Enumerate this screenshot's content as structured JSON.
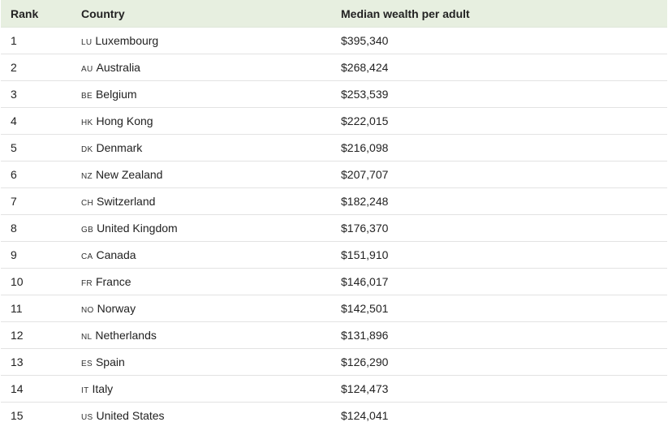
{
  "table": {
    "headers": {
      "rank": "Rank",
      "country": "Country",
      "wealth": "Median wealth per adult"
    },
    "rows": [
      {
        "rank": "1",
        "code": "LU",
        "country": "Luxembourg",
        "wealth": "$395,340"
      },
      {
        "rank": "2",
        "code": "AU",
        "country": "Australia",
        "wealth": "$268,424"
      },
      {
        "rank": "3",
        "code": "BE",
        "country": "Belgium",
        "wealth": "$253,539"
      },
      {
        "rank": "4",
        "code": "HK",
        "country": "Hong Kong",
        "wealth": "$222,015"
      },
      {
        "rank": "5",
        "code": "DK",
        "country": "Denmark",
        "wealth": "$216,098"
      },
      {
        "rank": "6",
        "code": "NZ",
        "country": "New Zealand",
        "wealth": "$207,707"
      },
      {
        "rank": "7",
        "code": "CH",
        "country": "Switzerland",
        "wealth": "$182,248"
      },
      {
        "rank": "8",
        "code": "GB",
        "country": "United Kingdom",
        "wealth": "$176,370"
      },
      {
        "rank": "9",
        "code": "CA",
        "country": "Canada",
        "wealth": "$151,910"
      },
      {
        "rank": "10",
        "code": "FR",
        "country": "France",
        "wealth": "$146,017"
      },
      {
        "rank": "11",
        "code": "NO",
        "country": "Norway",
        "wealth": "$142,501"
      },
      {
        "rank": "12",
        "code": "NL",
        "country": "Netherlands",
        "wealth": "$131,896"
      },
      {
        "rank": "13",
        "code": "ES",
        "country": "Spain",
        "wealth": "$126,290"
      },
      {
        "rank": "14",
        "code": "IT",
        "country": "Italy",
        "wealth": "$124,473"
      },
      {
        "rank": "15",
        "code": "US",
        "country": "United States",
        "wealth": "$124,041"
      }
    ]
  },
  "colors": {
    "header_bg": "#e7efe0",
    "row_divider": "#e3e3e3"
  }
}
